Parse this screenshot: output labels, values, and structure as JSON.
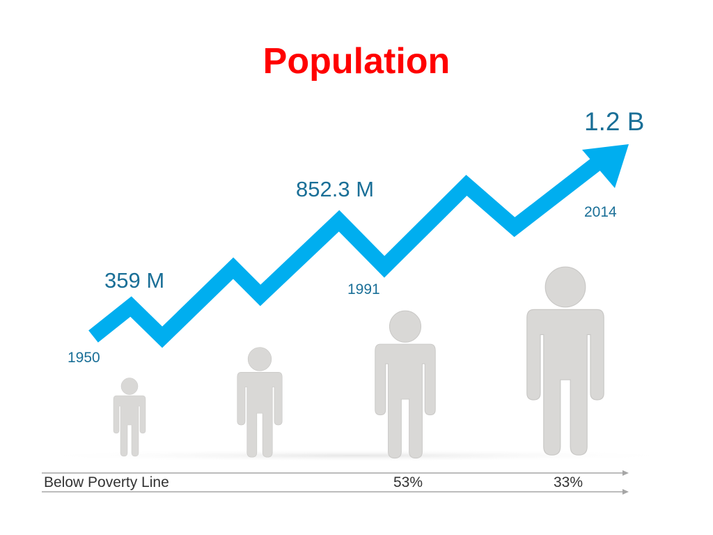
{
  "title": "Population",
  "milestones": [
    {
      "value": "359 M",
      "year": "1950"
    },
    {
      "value": "852.3 M",
      "year": "1991"
    },
    {
      "value": "1.2 B",
      "year": "2014"
    }
  ],
  "poverty": {
    "label": "Below Poverty Line",
    "values": [
      "53%",
      "33%"
    ]
  },
  "colors": {
    "title": "#ff0000",
    "arrow": "#00aeef",
    "labels": "#1a6f97",
    "figures": "#d9d8d6"
  }
}
